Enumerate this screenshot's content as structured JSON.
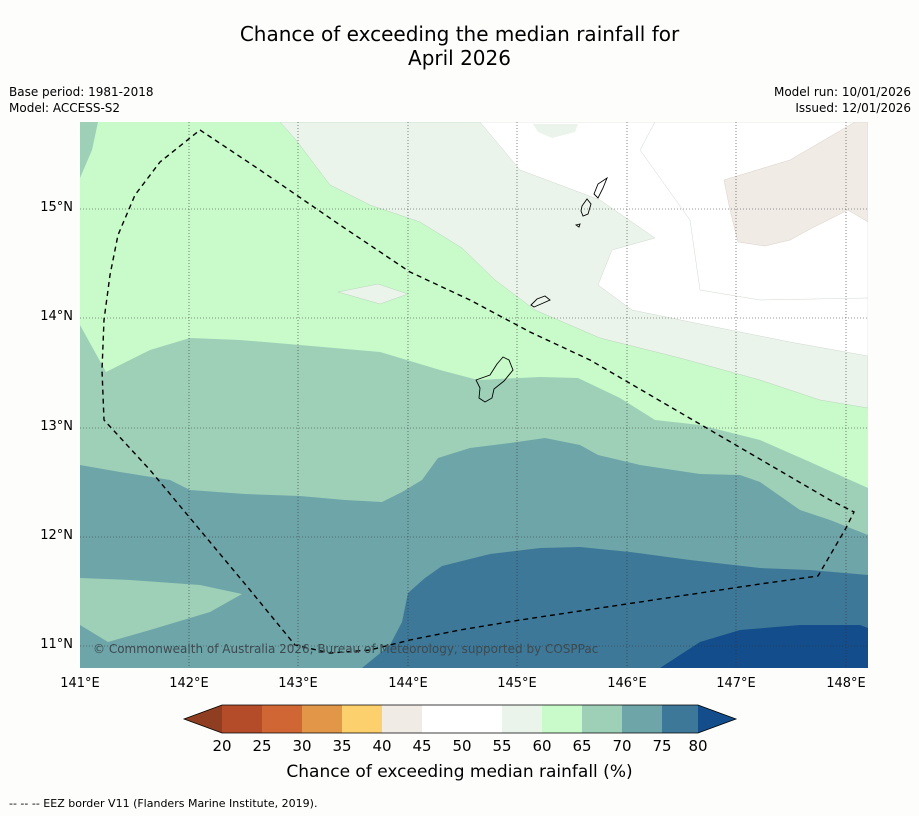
{
  "title_line1": "Chance of exceeding the median rainfall for",
  "title_line2": "April 2026",
  "meta": {
    "base_period": "Base period: 1981-2018",
    "model": "Model: ACCESS-S2",
    "model_run": "Model run: 10/01/2026",
    "issued": "Issued: 12/01/2026"
  },
  "map": {
    "lat_labels": [
      "15°N",
      "14°N",
      "13°N",
      "12°N",
      "11°N"
    ],
    "lon_labels": [
      "141°E",
      "142°E",
      "143°E",
      "144°E",
      "145°E",
      "146°E",
      "147°E",
      "148°E"
    ],
    "copyright": "© Commonwealth of Australia 2026, Bureau of Meteorology, supported by COSPPac"
  },
  "colorbar": {
    "labels": [
      "20",
      "25",
      "30",
      "35",
      "40",
      "45",
      "50",
      "55",
      "60",
      "65",
      "70",
      "75",
      "80"
    ],
    "title": "Chance of exceeding median rainfall (%)",
    "colors": [
      "#8f3e22",
      "#b44c2a",
      "#cf6634",
      "#e29748",
      "#fcd06c",
      "#f1ebe6",
      "#ffffff",
      "#ffffff",
      "#eaf4ea",
      "#c8fbc9",
      "#9ed0b8",
      "#6ea5a8",
      "#3e7898",
      "#134d8b"
    ]
  },
  "legend": {
    "eez": "--  --  -- EEZ border V11 (Flanders Marine Institute, 2019)."
  }
}
